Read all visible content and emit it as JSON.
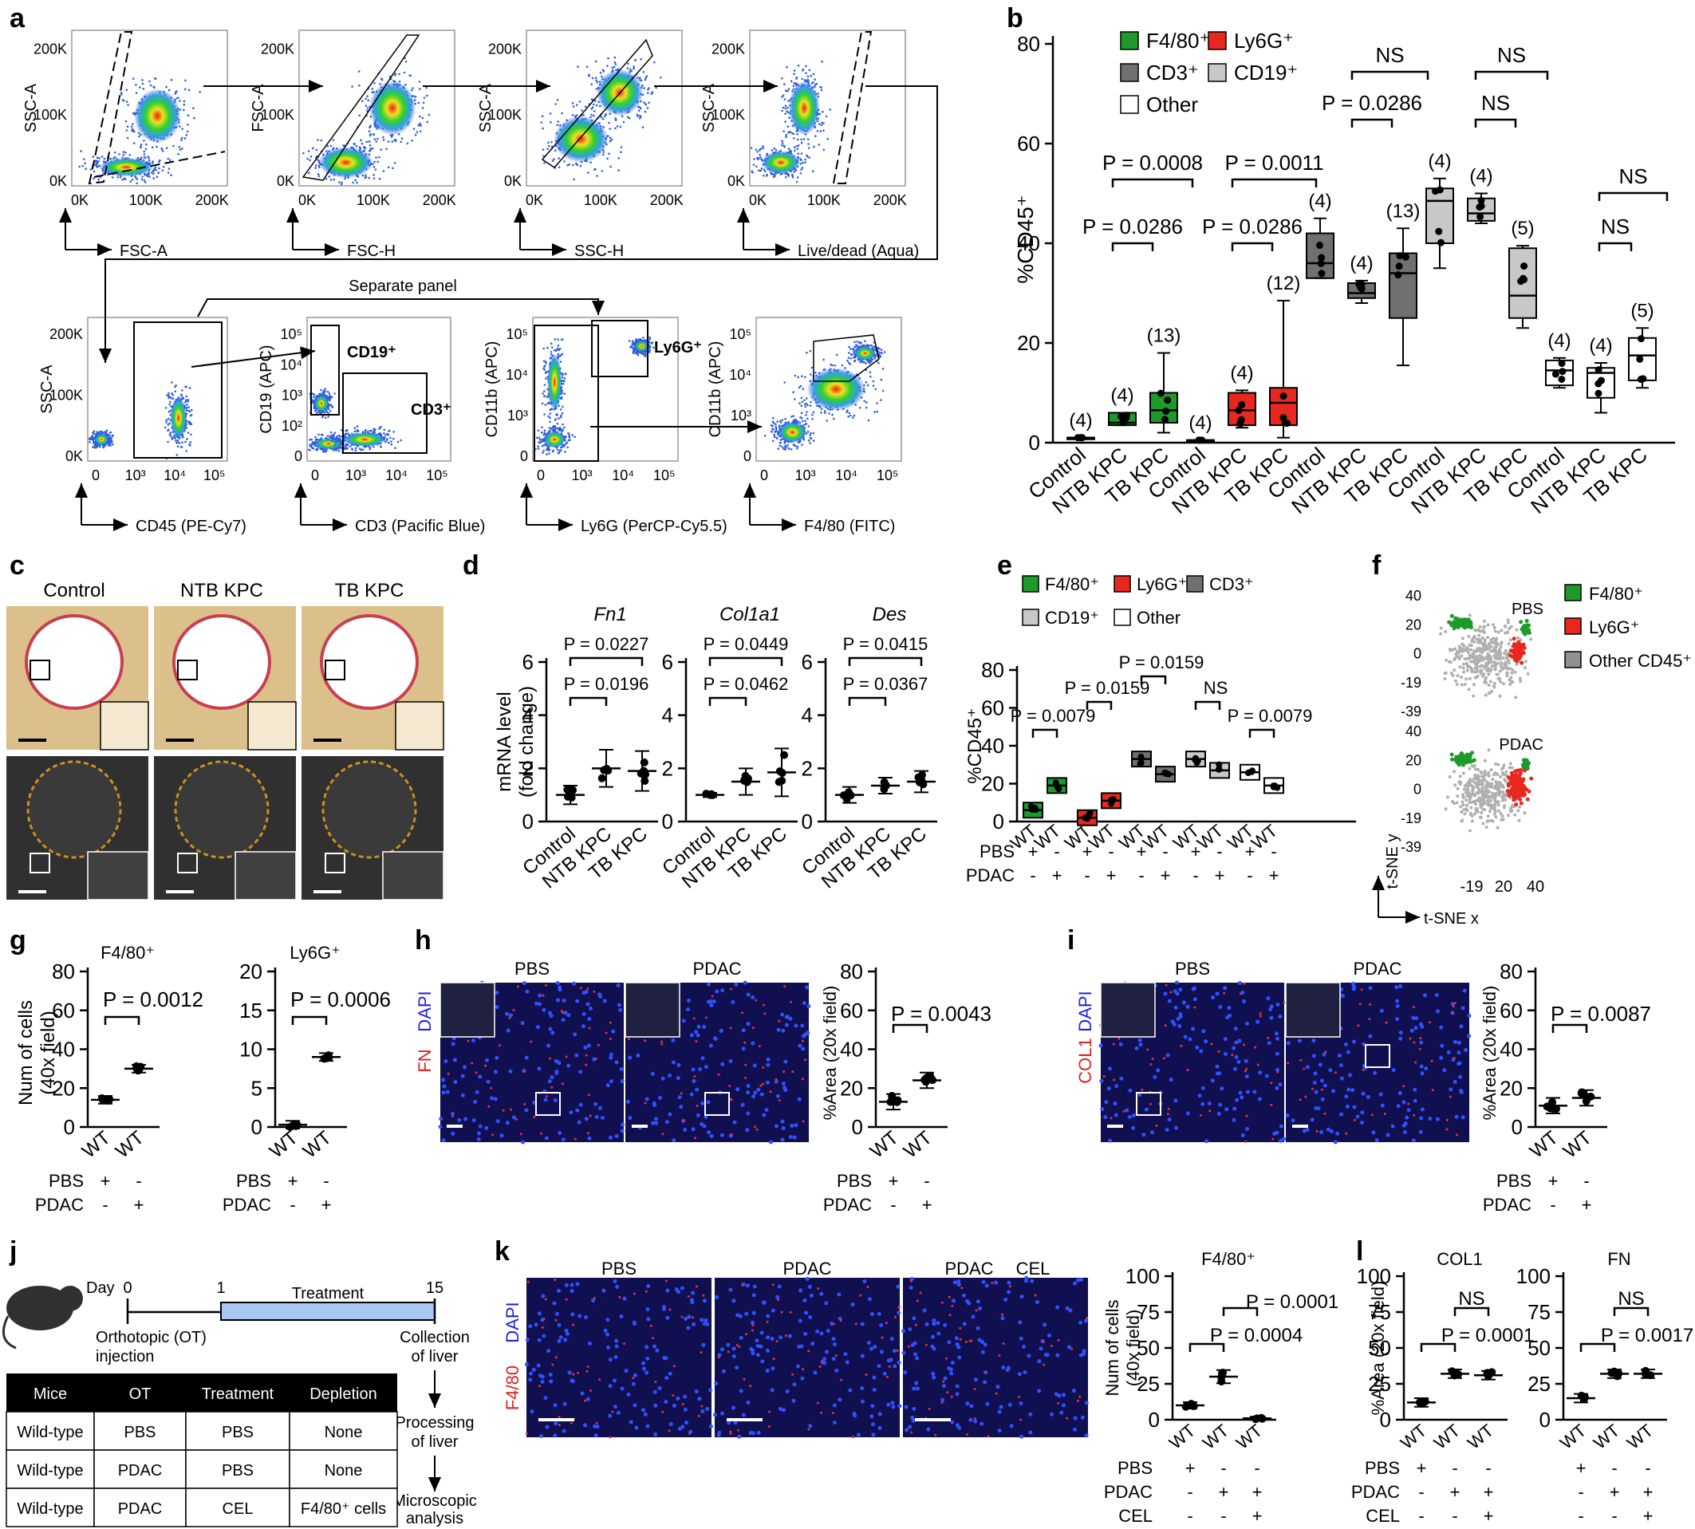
{
  "panel_letters": [
    "a",
    "b",
    "c",
    "d",
    "e",
    "f",
    "g",
    "h",
    "i",
    "j",
    "k",
    "l"
  ],
  "a": {
    "flow_plots": [
      {
        "ylabel": "SSC-A",
        "xlabel": "FSC-A",
        "xticks": [
          "0K",
          "100K",
          "200K"
        ],
        "yticks": [
          "0K",
          "100K",
          "200K"
        ]
      },
      {
        "ylabel": "FSC-A",
        "xlabel": "FSC-H",
        "xticks": [
          "0K",
          "100K",
          "200K"
        ],
        "yticks": [
          "0K",
          "100K",
          "200K"
        ]
      },
      {
        "ylabel": "SSC-A",
        "xlabel": "SSC-H",
        "xticks": [
          "0K",
          "100K",
          "200K"
        ],
        "yticks": [
          "0K",
          "100K",
          "200K"
        ]
      },
      {
        "ylabel": "SSC-A",
        "xlabel": "Live/dead (Aqua)",
        "xticks": [
          "0K",
          "100K",
          "200K"
        ],
        "yticks": [
          "0K",
          "100K",
          "200K"
        ]
      },
      {
        "ylabel": "SSC-A",
        "xlabel": "CD45 (PE-Cy7)",
        "xticks": [
          "0",
          "10³",
          "10⁴",
          "10⁵"
        ],
        "yticks": [
          "0K",
          "100K",
          "200K"
        ]
      },
      {
        "ylabel": "CD19 (APC)",
        "xlabel": "CD3 (Pacific Blue)",
        "xticks": [
          "0",
          "10³",
          "10⁴",
          "10⁵"
        ],
        "yticks": [
          "0",
          "10²",
          "10³",
          "10⁴",
          "10⁵"
        ],
        "gates": [
          "CD19⁺",
          "CD3⁺"
        ]
      },
      {
        "ylabel": "CD11b (APC)",
        "xlabel": "Ly6G (PerCP-Cy5.5)",
        "xticks": [
          "0",
          "10³",
          "10⁴",
          "10⁵"
        ],
        "yticks": [
          "0",
          "10³",
          "10⁴",
          "10⁵"
        ],
        "gates": [
          "Ly6G⁺"
        ]
      },
      {
        "ylabel": "CD11b (APC)",
        "xlabel": "F4/80 (FITC)",
        "xticks": [
          "0",
          "10³",
          "10⁴",
          "10⁵"
        ],
        "yticks": [
          "0",
          "10³",
          "10⁴",
          "10⁵"
        ]
      }
    ],
    "separate_panel": "Separate panel"
  },
  "b": {
    "ylabel": "%CD45⁺",
    "yticks": [
      "0",
      "20",
      "40",
      "60",
      "80"
    ],
    "legend": [
      "F4/80⁺",
      "Ly6G⁺",
      "CD3⁺",
      "CD19⁺",
      "Other"
    ],
    "xlabels": [
      "Control",
      "NTB KPC",
      "TB KPC"
    ],
    "n_labels": [
      "(4)",
      "(4)",
      "(13)",
      "(4)",
      "(4)",
      "(12)",
      "(4)",
      "(4)",
      "(13)",
      "(4)",
      "(4)",
      "(5)",
      "(4)",
      "(4)",
      "(5)"
    ],
    "pvalues": [
      "P = 0.0008",
      "P = 0.0286",
      "P = 0.0011",
      "P = 0.0286",
      "NS",
      "P = 0.0286",
      "NS",
      "NS",
      "NS",
      "NS"
    ]
  },
  "c": {
    "titles": [
      "Control",
      "NTB KPC",
      "TB KPC"
    ]
  },
  "d": {
    "ylabel": "mRNA level",
    "ylabel2": "(fold change)",
    "yticks": [
      "0",
      "2",
      "4",
      "6"
    ],
    "genes": [
      "Fn1",
      "Col1a1",
      "Des"
    ],
    "xlabels": [
      "Control",
      "NTB KPC",
      "TB KPC"
    ],
    "pvalues": [
      [
        "P = 0.0227",
        "P = 0.0196"
      ],
      [
        "P = 0.0449",
        "P = 0.0462"
      ],
      [
        "P = 0.0415",
        "P = 0.0367"
      ]
    ]
  },
  "e": {
    "ylabel": "%CD45⁺",
    "yticks": [
      "0",
      "20",
      "40",
      "60",
      "80"
    ],
    "legend": [
      "F4/80⁺",
      "Ly6G⁺",
      "CD3⁺",
      "CD19⁺",
      "Other"
    ],
    "xlabel": "WT",
    "rows": [
      "PBS",
      "PDAC"
    ],
    "plus": "+",
    "minus": "-",
    "pvalues": [
      "P = 0.0079",
      "P = 0.0159",
      "P = 0.0159",
      "NS",
      "P = 0.0079"
    ]
  },
  "f": {
    "labels": [
      "PBS",
      "PDAC"
    ],
    "legend": [
      "F4/80⁺",
      "Ly6G⁺",
      "Other CD45⁺"
    ],
    "yticks": [
      "40",
      "20",
      "0",
      "-19",
      "-39"
    ],
    "xticks": [
      "-19",
      "20",
      "40"
    ],
    "xlabel": "t-SNE x",
    "ylabel": "t-SNE y"
  },
  "g": {
    "titles": [
      "F4/80⁺",
      "Ly6G⁺"
    ],
    "ylabel": "Num of cells",
    "ylabel2": "(40x field)",
    "yticks1": [
      "0",
      "20",
      "40",
      "60",
      "80"
    ],
    "yticks2": [
      "0",
      "5",
      "10",
      "15",
      "20"
    ],
    "pvalues": [
      "P = 0.0012",
      "P = 0.0006"
    ],
    "xlabel": "WT",
    "rows": [
      "PBS",
      "PDAC"
    ],
    "plus": "+",
    "minus": "-"
  },
  "h": {
    "titles": [
      "PBS",
      "PDAC"
    ],
    "stain1": "FN",
    "stain2": "DAPI",
    "ylabel": "%Area (20x field)",
    "yticks": [
      "0",
      "20",
      "40",
      "60",
      "80"
    ],
    "pvalue": "P = 0.0043",
    "xlabel": "WT",
    "rows": [
      "PBS",
      "PDAC"
    ],
    "plus": "+",
    "minus": "-"
  },
  "i": {
    "titles": [
      "PBS",
      "PDAC"
    ],
    "stain1": "COL1",
    "stain2": "DAPI",
    "ylabel": "%Area (20x field)",
    "yticks": [
      "0",
      "20",
      "40",
      "60",
      "80"
    ],
    "pvalue": "P = 0.0087",
    "xlabel": "WT",
    "rows": [
      "PBS",
      "PDAC"
    ],
    "plus": "+",
    "minus": "-"
  },
  "j": {
    "day_label": "Day",
    "days": [
      "0",
      "1",
      "15"
    ],
    "treatment": "Treatment",
    "ot1": "Orthotopic (OT)",
    "ot2": "injection",
    "collection1": "Collection",
    "collection2": "of liver",
    "processing1": "Processing",
    "processing2": "of liver",
    "micro1": "Microscopic",
    "micro2": "analysis",
    "table": {
      "headers": [
        "Mice",
        "OT",
        "Treatment",
        "Depletion"
      ],
      "rows": [
        [
          "Wild-type",
          "PBS",
          "PBS",
          "None"
        ],
        [
          "Wild-type",
          "PDAC",
          "PBS",
          "None"
        ],
        [
          "Wild-type",
          "PDAC",
          "CEL",
          "F4/80⁺ cells"
        ]
      ]
    }
  },
  "k": {
    "titles": [
      "PBS",
      "PDAC",
      "PDAC",
      "CEL"
    ],
    "stain1": "F4/80",
    "stain2": "DAPI",
    "chart_title": "F4/80⁺",
    "ylabel": "Num of cells",
    "ylabel2": "(40x field)",
    "yticks": [
      "0",
      "25",
      "50",
      "75",
      "100"
    ],
    "pvalues": [
      "P = 0.0001",
      "P = 0.0004"
    ],
    "xlabel": "WT",
    "rows": [
      "PBS",
      "PDAC",
      "CEL"
    ],
    "plus": "+",
    "minus": "-"
  },
  "l": {
    "titles": [
      "COL1",
      "FN"
    ],
    "ylabel": "%Area (20x field)",
    "yticks": [
      "0",
      "25",
      "50",
      "75",
      "100"
    ],
    "pvalues": [
      [
        "NS",
        "P = 0.0001"
      ],
      [
        "NS",
        "P = 0.0017"
      ]
    ],
    "xlabel": "WT",
    "rows": [
      "PBS",
      "PDAC",
      "CEL"
    ],
    "plus": "+",
    "minus": "-"
  },
  "colors": {
    "green": "#1e9a2a",
    "red": "#e8281e",
    "darkgray": "#707070",
    "lightgray": "#c8c8c8",
    "white": "#ffffff"
  },
  "chart_data": [
    {
      "panel": "b",
      "type": "box",
      "categories": [
        "Control",
        "NTB KPC",
        "TB KPC"
      ],
      "ylim": [
        0,
        80
      ],
      "series": [
        {
          "name": "F4/80⁺",
          "medians": [
            1,
            4,
            6.5
          ],
          "q1": [
            1,
            3.5,
            4
          ],
          "q3": [
            1,
            6,
            10
          ],
          "min": [
            1,
            3.5,
            2
          ],
          "max": [
            1,
            6,
            18
          ]
        },
        {
          "name": "Ly6G⁺",
          "medians": [
            0.5,
            6.5,
            8
          ],
          "q1": [
            0.5,
            3.5,
            3.5
          ],
          "q3": [
            0.5,
            10,
            11
          ],
          "min": [
            0.5,
            3,
            1
          ],
          "max": [
            0.5,
            10.5,
            28.5
          ]
        },
        {
          "name": "CD3⁺",
          "medians": [
            36,
            30,
            34
          ],
          "q1": [
            33,
            29,
            25
          ],
          "q3": [
            42,
            32,
            38
          ],
          "min": [
            33,
            28,
            15.5
          ],
          "max": [
            45,
            32.5,
            43
          ]
        },
        {
          "name": "CD19⁺",
          "medians": [
            48.5,
            46,
            29.5
          ],
          "q1": [
            40,
            44.5,
            25
          ],
          "q3": [
            51,
            49,
            39
          ],
          "min": [
            35,
            44,
            23
          ],
          "max": [
            53,
            50,
            39.5
          ]
        },
        {
          "name": "Other",
          "medians": [
            14.5,
            14,
            17.5
          ],
          "q1": [
            11.5,
            9,
            12.5
          ],
          "q3": [
            16.5,
            15,
            21
          ],
          "min": [
            11,
            6,
            11
          ],
          "max": [
            17,
            16,
            23
          ]
        }
      ]
    },
    {
      "panel": "d",
      "type": "scatter",
      "categories": [
        "Control",
        "NTB KPC",
        "TB KPC"
      ],
      "ylim": [
        0,
        6
      ],
      "series": [
        {
          "name": "Fn1",
          "means": [
            1.0,
            2.0,
            1.9
          ],
          "sd": [
            0.35,
            0.7,
            0.75
          ]
        },
        {
          "name": "Col1a1",
          "means": [
            1.0,
            1.5,
            1.85
          ],
          "sd": [
            0.08,
            0.5,
            0.9
          ]
        },
        {
          "name": "Des",
          "means": [
            1.0,
            1.35,
            1.5
          ],
          "sd": [
            0.3,
            0.3,
            0.4
          ]
        }
      ]
    },
    {
      "panel": "e",
      "type": "box",
      "categories": [
        "PBS",
        "PDAC"
      ],
      "ylim": [
        0,
        80
      ],
      "series": [
        {
          "name": "F4/80⁺",
          "medians": [
            6,
            19
          ]
        },
        {
          "name": "Ly6G⁺",
          "medians": [
            2,
            11
          ]
        },
        {
          "name": "CD3⁺",
          "medians": [
            33,
            25
          ]
        },
        {
          "name": "CD19⁺",
          "medians": [
            33,
            27
          ]
        },
        {
          "name": "Other",
          "medians": [
            26,
            19
          ]
        }
      ]
    },
    {
      "panel": "g",
      "type": "scatter",
      "categories": [
        "PBS",
        "PDAC"
      ],
      "series": [
        {
          "name": "F4/80⁺",
          "means": [
            14,
            30
          ],
          "ylim": [
            0,
            80
          ]
        },
        {
          "name": "Ly6G⁺",
          "means": [
            0.3,
            9
          ],
          "ylim": [
            0,
            20
          ]
        }
      ]
    },
    {
      "panel": "h",
      "type": "scatter",
      "categories": [
        "PBS",
        "PDAC"
      ],
      "ylim": [
        0,
        80
      ],
      "series": [
        {
          "name": "FN",
          "means": [
            13,
            24
          ]
        }
      ]
    },
    {
      "panel": "i",
      "type": "scatter",
      "categories": [
        "PBS",
        "PDAC"
      ],
      "ylim": [
        0,
        80
      ],
      "series": [
        {
          "name": "COL1",
          "means": [
            11,
            15
          ]
        }
      ]
    },
    {
      "panel": "k",
      "type": "scatter",
      "categories": [
        "PBS",
        "PDAC",
        "CEL"
      ],
      "ylim": [
        0,
        100
      ],
      "series": [
        {
          "name": "F4/80⁺",
          "means": [
            10,
            30,
            1
          ]
        }
      ]
    },
    {
      "panel": "l",
      "type": "scatter",
      "categories": [
        "PBS",
        "PDAC",
        "CEL"
      ],
      "ylim": [
        0,
        100
      ],
      "series": [
        {
          "name": "COL1",
          "means": [
            12,
            32,
            31
          ]
        },
        {
          "name": "FN",
          "means": [
            15,
            32,
            32
          ]
        }
      ]
    }
  ]
}
